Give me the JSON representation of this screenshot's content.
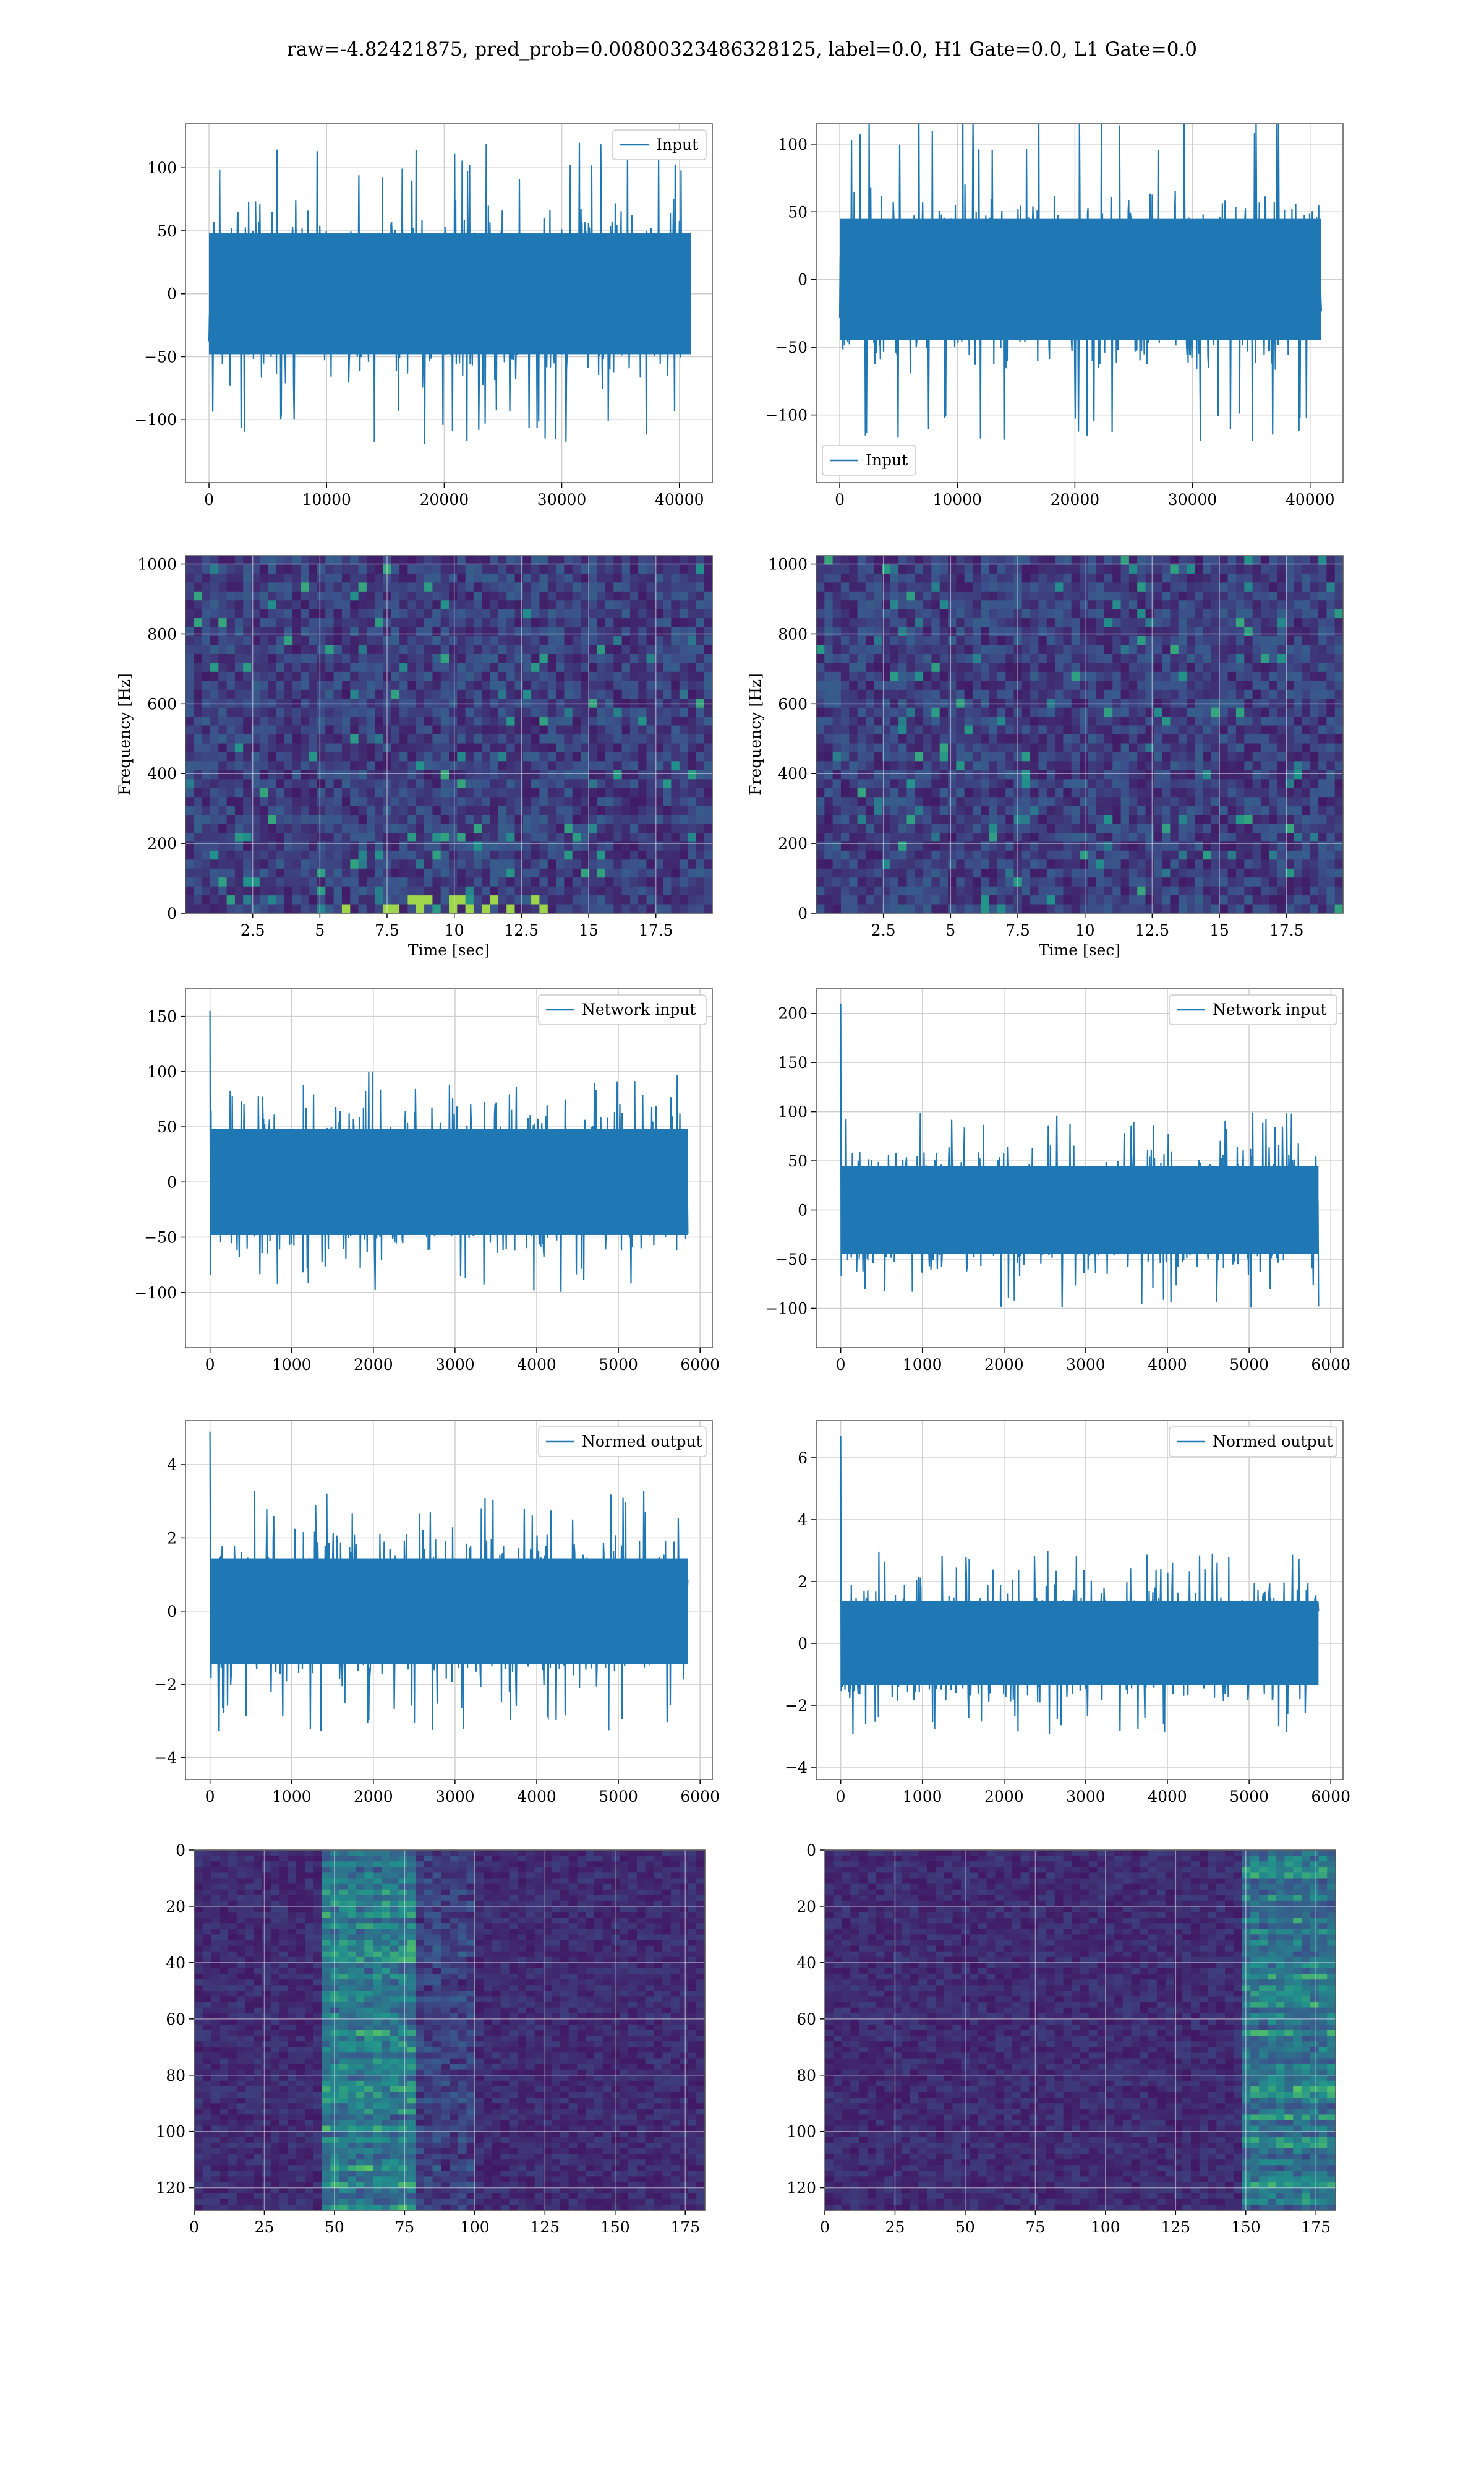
{
  "figure": {
    "title": "raw=-4.82421875, pred_prob=0.00800323486328125, label=0.0, H1 Gate=0.0, L1 Gate=0.0"
  },
  "colors": {
    "line": "#1f77b4",
    "grid": "#cfcfcf",
    "axes": "#555555"
  },
  "chart_data": [
    {
      "id": "h1-input",
      "type": "line",
      "series": [
        {
          "name": "Input"
        }
      ],
      "legend": "top-right",
      "grid": true,
      "xlim": [
        -2000,
        42800
      ],
      "ylim": [
        -150,
        135
      ],
      "xticks": [
        0,
        10000,
        20000,
        30000,
        40000
      ],
      "yticks": [
        -100,
        -50,
        0,
        50,
        100
      ],
      "x_range": [
        0,
        40960
      ],
      "typical_amp": 30,
      "peak_amp": 120,
      "seed": 11
    },
    {
      "id": "l1-input",
      "type": "line",
      "series": [
        {
          "name": "Input"
        }
      ],
      "legend": "bottom-left",
      "grid": true,
      "xlim": [
        -2000,
        42800
      ],
      "ylim": [
        -150,
        115
      ],
      "xticks": [
        0,
        10000,
        20000,
        30000,
        40000
      ],
      "yticks": [
        -100,
        -50,
        0,
        50,
        100
      ],
      "x_range": [
        0,
        40960
      ],
      "typical_amp": 28,
      "peak_amp": 125,
      "seed": 23
    },
    {
      "id": "h1-spectrogram",
      "type": "heatmap",
      "xlabel": "Time [sec]",
      "ylabel": "Frequency [Hz]",
      "xlim": [
        0,
        19.6
      ],
      "ylim": [
        0,
        1024
      ],
      "xticks": [
        2.5,
        5.0,
        7.5,
        10.0,
        12.5,
        15.0,
        17.5
      ],
      "yticks": [
        0,
        200,
        400,
        600,
        800,
        1000
      ],
      "colormap": "viridis",
      "grid": true,
      "seed": 5
    },
    {
      "id": "l1-spectrogram",
      "type": "heatmap",
      "xlabel": "Time [sec]",
      "ylabel": "Frequency [Hz]",
      "xlim": [
        0,
        19.6
      ],
      "ylim": [
        0,
        1024
      ],
      "xticks": [
        2.5,
        5.0,
        7.5,
        10.0,
        12.5,
        15.0,
        17.5
      ],
      "yticks": [
        0,
        200,
        400,
        600,
        800,
        1000
      ],
      "colormap": "viridis",
      "grid": true,
      "seed": 9
    },
    {
      "id": "h1-network-input",
      "type": "line",
      "series": [
        {
          "name": "Network input"
        }
      ],
      "legend": "top-right",
      "grid": true,
      "xlim": [
        -300,
        6150
      ],
      "ylim": [
        -150,
        175
      ],
      "xticks": [
        0,
        1000,
        2000,
        3000,
        4000,
        5000,
        6000
      ],
      "yticks": [
        -100,
        -50,
        0,
        50,
        100,
        150
      ],
      "x_range": [
        0,
        5850
      ],
      "typical_amp": 30,
      "peak_amp": 100,
      "spike": 155,
      "seed": 31
    },
    {
      "id": "l1-network-input",
      "type": "line",
      "series": [
        {
          "name": "Network input"
        }
      ],
      "legend": "top-right",
      "grid": true,
      "xlim": [
        -300,
        6150
      ],
      "ylim": [
        -140,
        225
      ],
      "xticks": [
        0,
        1000,
        2000,
        3000,
        4000,
        5000,
        6000
      ],
      "yticks": [
        -100,
        -50,
        0,
        50,
        100,
        150,
        200
      ],
      "x_range": [
        0,
        5850
      ],
      "typical_amp": 28,
      "peak_amp": 100,
      "spike": 210,
      "seed": 37
    },
    {
      "id": "h1-normed-output",
      "type": "line",
      "series": [
        {
          "name": "Normed output"
        }
      ],
      "legend": "top-right",
      "grid": true,
      "xlim": [
        -300,
        6150
      ],
      "ylim": [
        -4.6,
        5.2
      ],
      "xticks": [
        0,
        1000,
        2000,
        3000,
        4000,
        5000,
        6000
      ],
      "yticks": [
        -4,
        -2,
        0,
        2,
        4
      ],
      "x_range": [
        0,
        5850
      ],
      "typical_amp": 0.9,
      "peak_amp": 3.3,
      "spike": 4.9,
      "seed": 41
    },
    {
      "id": "l1-normed-output",
      "type": "line",
      "series": [
        {
          "name": "Normed output"
        }
      ],
      "legend": "top-right",
      "grid": true,
      "xlim": [
        -300,
        6150
      ],
      "ylim": [
        -4.4,
        7.2
      ],
      "xticks": [
        0,
        1000,
        2000,
        3000,
        4000,
        5000,
        6000
      ],
      "yticks": [
        -4,
        -2,
        0,
        2,
        4,
        6
      ],
      "x_range": [
        0,
        5850
      ],
      "typical_amp": 0.85,
      "peak_amp": 3.0,
      "spike": 6.7,
      "seed": 43
    },
    {
      "id": "h1-feature-map",
      "type": "heatmap",
      "grid": true,
      "colormap": "viridis",
      "xlim": [
        0,
        182
      ],
      "ylim": [
        0,
        128
      ],
      "y_inverted": true,
      "xticks": [
        0,
        25,
        50,
        75,
        100,
        125,
        150,
        175
      ],
      "yticks": [
        0,
        20,
        40,
        60,
        80,
        100,
        120
      ],
      "hot_columns": [
        45,
        80
      ],
      "seed": 51
    },
    {
      "id": "l1-feature-map",
      "type": "heatmap",
      "grid": true,
      "colormap": "viridis",
      "xlim": [
        0,
        182
      ],
      "ylim": [
        0,
        128
      ],
      "y_inverted": true,
      "xticks": [
        0,
        25,
        50,
        75,
        100,
        125,
        150,
        175
      ],
      "yticks": [
        0,
        20,
        40,
        60,
        80,
        100,
        120
      ],
      "hot_columns": [
        150,
        182
      ],
      "seed": 57
    }
  ]
}
